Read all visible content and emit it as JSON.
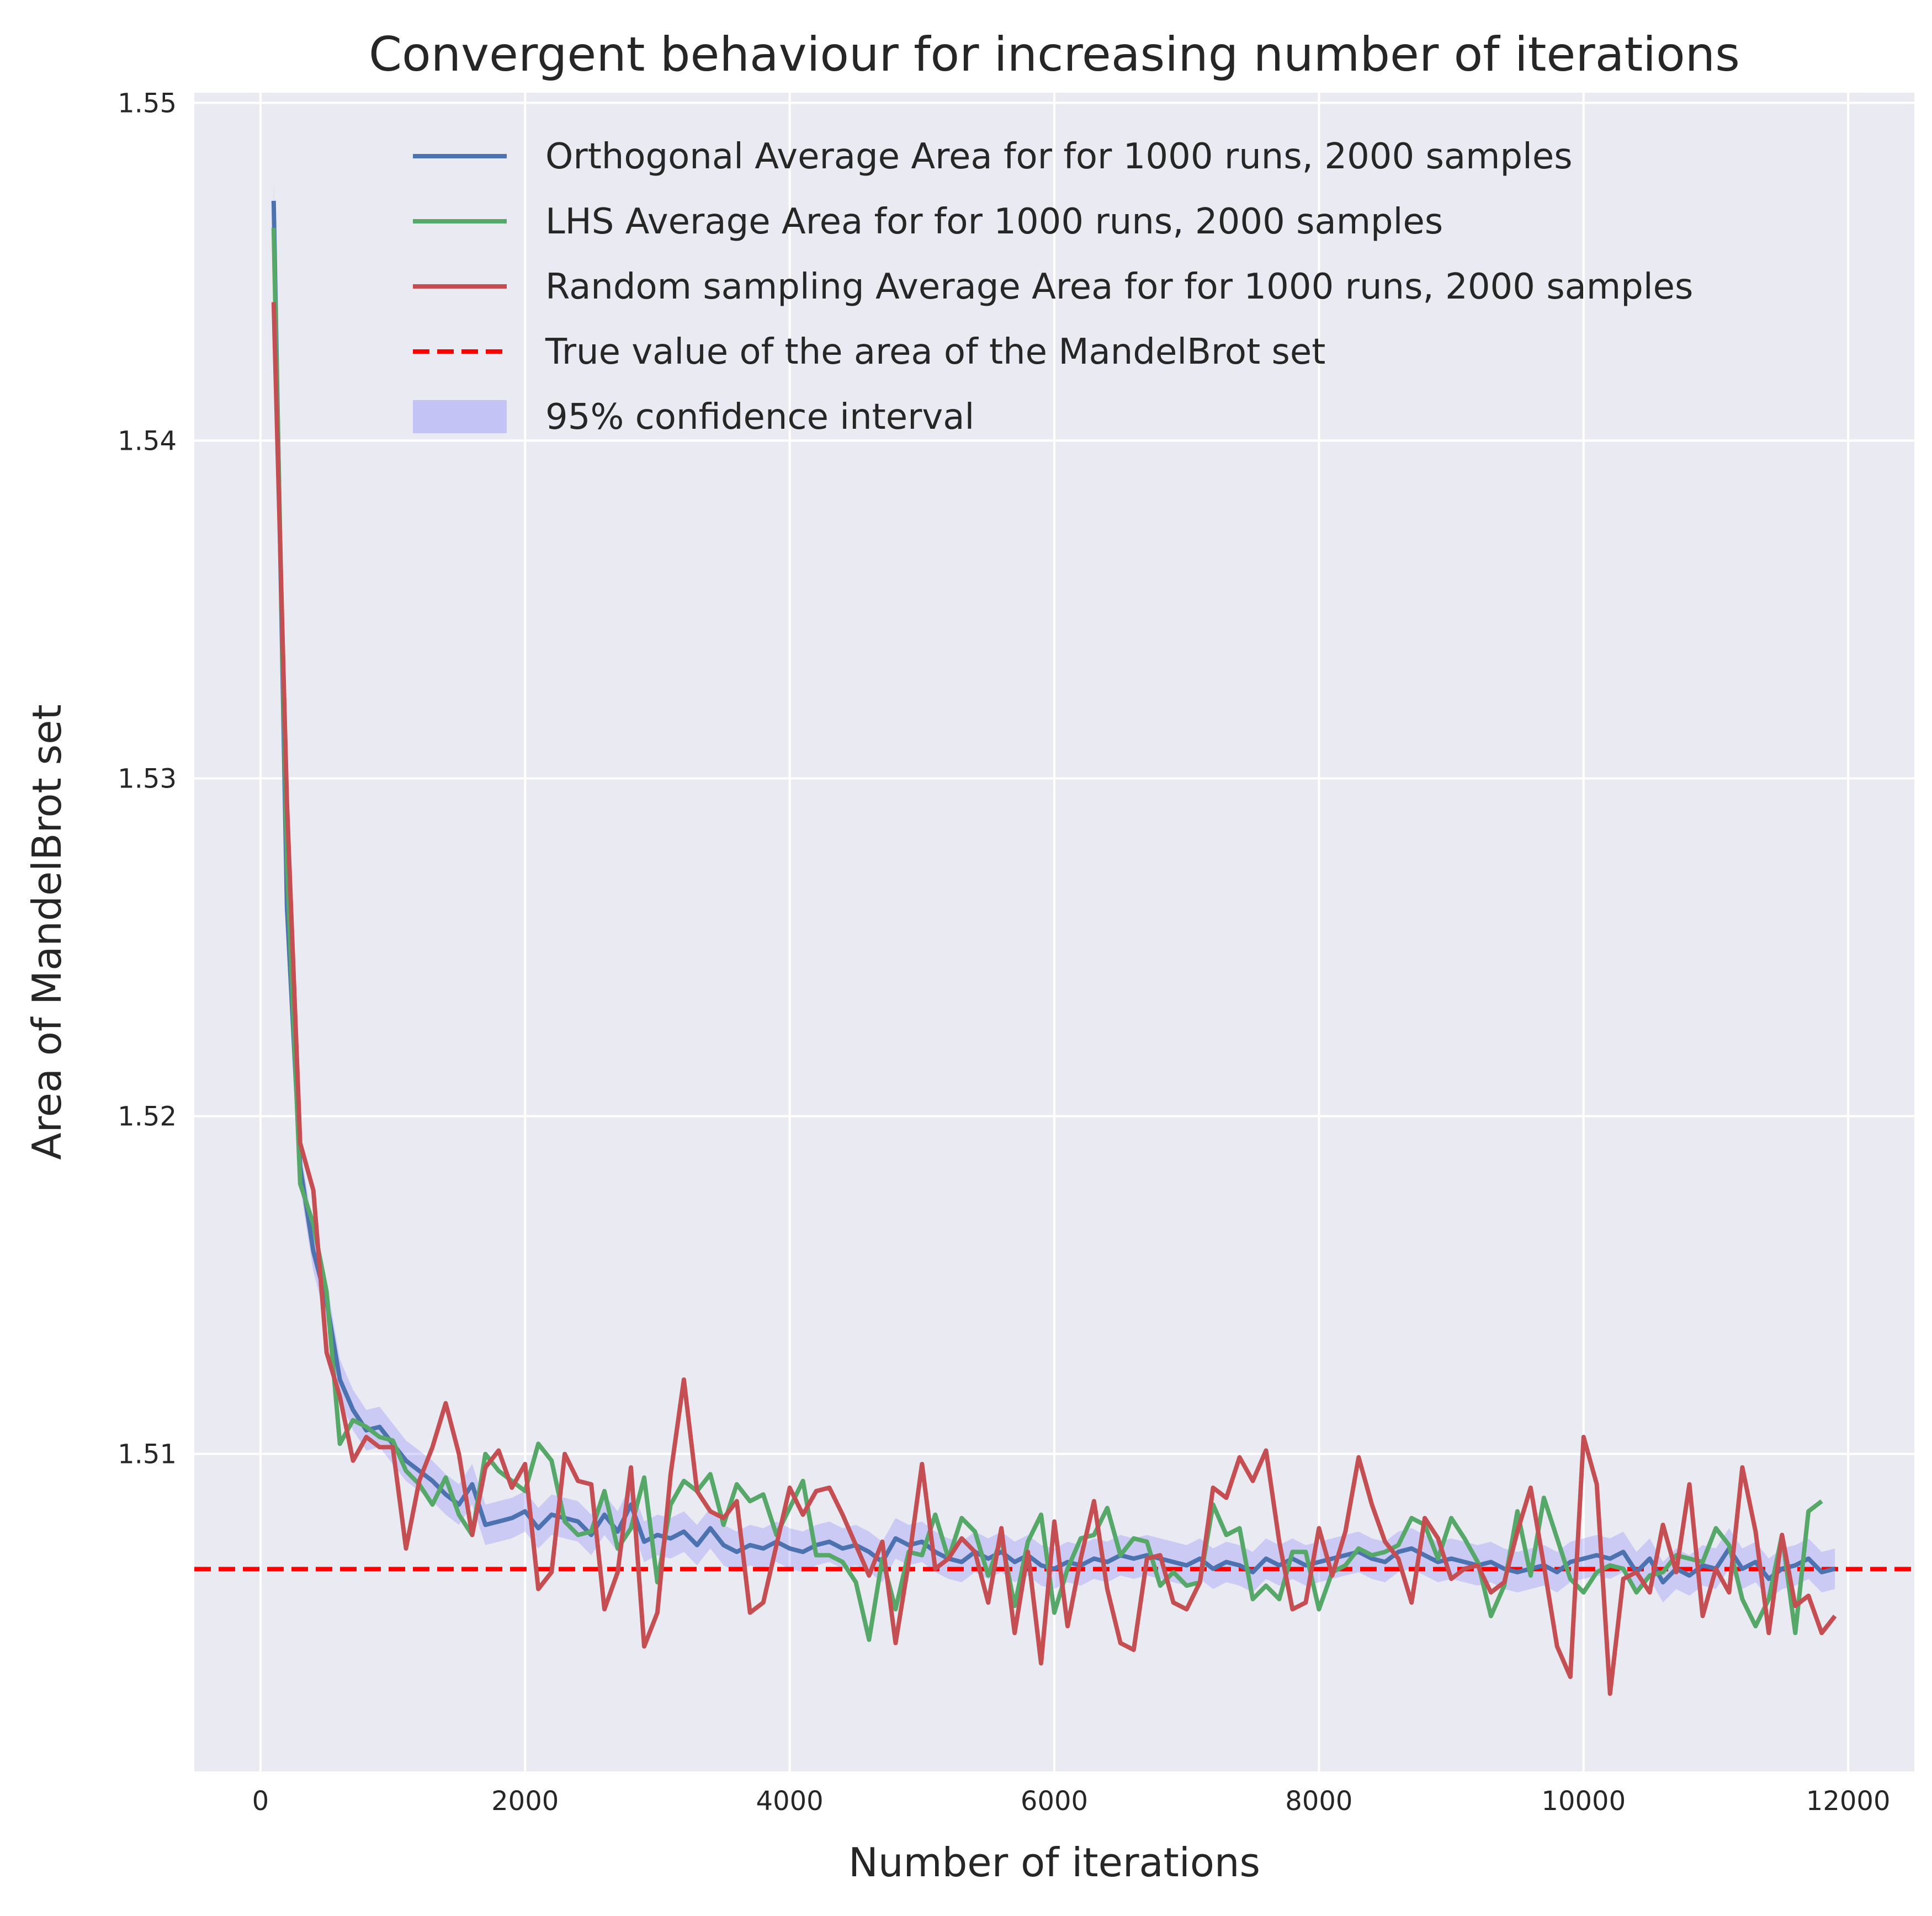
{
  "chart_data": {
    "type": "line",
    "title": "Convergent behaviour for increasing number of iterations",
    "xlabel": "Number of iterations",
    "ylabel": "Area of MandelBrot set",
    "xlim": [
      -500,
      12500
    ],
    "ylim": [
      1.5006,
      1.5503
    ],
    "xticks": [
      0,
      2000,
      4000,
      6000,
      8000,
      10000,
      12000
    ],
    "yticks": [
      1.51,
      1.52,
      1.53,
      1.54,
      1.55
    ],
    "grid": true,
    "legend_position": "top-right",
    "reference_line": {
      "name": "True value of the area of the MandelBrot set",
      "y": 1.50659,
      "color": "#ff0000",
      "style": "dashed"
    },
    "band": {
      "name": "95% confidence interval",
      "color": "#6a6aff",
      "opacity": 0.25,
      "halfwidth": 0.0006
    },
    "series": [
      {
        "name": "Orthogonal Average Area for for 1000 runs, 2000 samples",
        "color": "#4c72b0",
        "x_start": 100,
        "x_step": 100,
        "values": [
          1.5471,
          1.5262,
          1.5185,
          1.516,
          1.5145,
          1.5122,
          1.5113,
          1.5107,
          1.5108,
          1.5103,
          1.5098,
          1.5095,
          1.5092,
          1.5088,
          1.5085,
          1.5091,
          1.5079,
          1.508,
          1.5081,
          1.5083,
          1.5078,
          1.5082,
          1.5081,
          1.508,
          1.5076,
          1.5082,
          1.5077,
          1.5085,
          1.5074,
          1.5076,
          1.5075,
          1.5077,
          1.5073,
          1.5078,
          1.5073,
          1.5071,
          1.5073,
          1.5072,
          1.5074,
          1.5072,
          1.5071,
          1.5073,
          1.5074,
          1.5072,
          1.5073,
          1.5071,
          1.5068,
          1.5075,
          1.5073,
          1.5074,
          1.5071,
          1.5069,
          1.5068,
          1.5071,
          1.5069,
          1.5071,
          1.5068,
          1.507,
          1.5067,
          1.5066,
          1.5068,
          1.5067,
          1.5069,
          1.5068,
          1.507,
          1.5069,
          1.507,
          1.5069,
          1.5068,
          1.5067,
          1.5069,
          1.5066,
          1.5068,
          1.5067,
          1.5065,
          1.5069,
          1.5067,
          1.5069,
          1.5067,
          1.5068,
          1.5069,
          1.507,
          1.5071,
          1.5069,
          1.5068,
          1.5071,
          1.5072,
          1.507,
          1.5068,
          1.5069,
          1.5068,
          1.5067,
          1.5068,
          1.5066,
          1.5065,
          1.5066,
          1.5067,
          1.5065,
          1.5068,
          1.5069,
          1.507,
          1.5069,
          1.5071,
          1.5065,
          1.5069,
          1.5062,
          1.5066,
          1.5064,
          1.5067,
          1.5066,
          1.5072,
          1.5066,
          1.5068,
          1.5063,
          1.5066,
          1.5067,
          1.5069,
          1.5065,
          1.5066
        ]
      },
      {
        "name": "LHS Average Area for for 1000 runs, 2000 samples",
        "color": "#55a868",
        "x_start": 100,
        "x_step": 100,
        "values": [
          1.5463,
          1.5275,
          1.518,
          1.5168,
          1.5148,
          1.5103,
          1.511,
          1.5108,
          1.5105,
          1.5104,
          1.5095,
          1.5091,
          1.5085,
          1.5093,
          1.5082,
          1.5076,
          1.51,
          1.5095,
          1.5092,
          1.5089,
          1.5103,
          1.5098,
          1.508,
          1.5076,
          1.5077,
          1.5089,
          1.5072,
          1.5078,
          1.5093,
          1.5062,
          1.5085,
          1.5092,
          1.5089,
          1.5094,
          1.5079,
          1.5091,
          1.5086,
          1.5088,
          1.5076,
          1.5084,
          1.5092,
          1.507,
          1.507,
          1.5068,
          1.5062,
          1.5045,
          1.5069,
          1.5054,
          1.5071,
          1.507,
          1.5082,
          1.5069,
          1.5081,
          1.5077,
          1.5064,
          1.5075,
          1.5055,
          1.5074,
          1.5082,
          1.5053,
          1.5066,
          1.5075,
          1.5076,
          1.5084,
          1.507,
          1.5075,
          1.5074,
          1.5061,
          1.5065,
          1.5061,
          1.5062,
          1.5085,
          1.5076,
          1.5078,
          1.5057,
          1.5061,
          1.5057,
          1.5071,
          1.5071,
          1.5054,
          1.5065,
          1.5067,
          1.5072,
          1.507,
          1.5071,
          1.5073,
          1.5081,
          1.5079,
          1.5069,
          1.5081,
          1.5075,
          1.5068,
          1.5052,
          1.5061,
          1.5083,
          1.5064,
          1.5087,
          1.5075,
          1.5063,
          1.5059,
          1.5065,
          1.5067,
          1.5066,
          1.5059,
          1.5064,
          1.5065,
          1.507,
          1.5069,
          1.5068,
          1.5078,
          1.5073,
          1.5057,
          1.5049,
          1.5057,
          1.5076,
          1.5047,
          1.5083,
          1.5086
        ]
      },
      {
        "name": "Random sampling Average Area for for 1000 runs, 2000 samples",
        "color": "#c44e52",
        "x_start": 100,
        "x_step": 100,
        "values": [
          1.5441,
          1.5293,
          1.5192,
          1.5178,
          1.513,
          1.5117,
          1.5098,
          1.5105,
          1.5102,
          1.5102,
          1.5072,
          1.5092,
          1.5102,
          1.5115,
          1.51,
          1.5076,
          1.5096,
          1.5101,
          1.509,
          1.5097,
          1.506,
          1.5065,
          1.51,
          1.5092,
          1.5091,
          1.5054,
          1.5065,
          1.5096,
          1.5043,
          1.5053,
          1.5094,
          1.5122,
          1.5089,
          1.5083,
          1.5081,
          1.5086,
          1.5053,
          1.5056,
          1.5073,
          1.509,
          1.5082,
          1.5089,
          1.509,
          1.5082,
          1.5073,
          1.5064,
          1.5074,
          1.5044,
          1.5068,
          1.5097,
          1.5066,
          1.5069,
          1.5075,
          1.5071,
          1.5056,
          1.5078,
          1.5047,
          1.5071,
          1.5038,
          1.508,
          1.5049,
          1.5069,
          1.5086,
          1.506,
          1.5044,
          1.5042,
          1.5069,
          1.507,
          1.5056,
          1.5054,
          1.5062,
          1.509,
          1.5087,
          1.5099,
          1.5092,
          1.5101,
          1.5074,
          1.5054,
          1.5056,
          1.5078,
          1.5064,
          1.5077,
          1.5099,
          1.5085,
          1.5074,
          1.5069,
          1.5056,
          1.5081,
          1.5075,
          1.5063,
          1.5066,
          1.5067,
          1.5059,
          1.5062,
          1.5077,
          1.509,
          1.5067,
          1.5043,
          1.5034,
          1.5105,
          1.5091,
          1.5029,
          1.5063,
          1.5065,
          1.5059,
          1.5079,
          1.5065,
          1.5091,
          1.5052,
          1.5066,
          1.5059,
          1.5096,
          1.5077,
          1.5047,
          1.5076,
          1.5055,
          1.5058,
          1.5047,
          1.5052
        ]
      }
    ]
  }
}
